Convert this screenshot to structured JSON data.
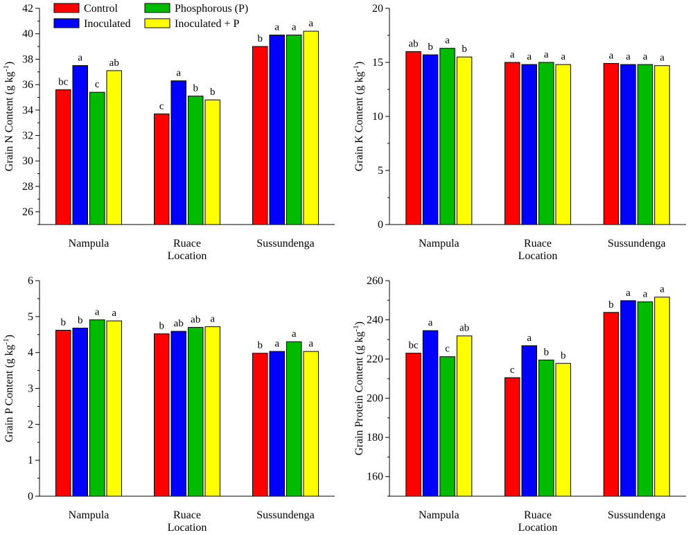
{
  "legend": [
    {
      "name": "Control",
      "color": "#ff0000"
    },
    {
      "name": "Inoculated",
      "color": "#0000ff"
    },
    {
      "name": "Phosphorous (P)",
      "color": "#00bb00"
    },
    {
      "name": "Inoculated + P",
      "color": "#ffff00"
    }
  ],
  "chart_data": [
    {
      "type": "bar",
      "ylabel": "Grain N Content (g kg",
      "ylabel_sup": "-1",
      "ylabel_close": ")",
      "xlabel": "Location",
      "ylim": [
        25,
        42
      ],
      "yticks": [
        26,
        28,
        30,
        32,
        34,
        36,
        38,
        40,
        42
      ],
      "ytick_labels": [
        "26",
        "28",
        "30",
        "32",
        "34",
        "36",
        "38",
        "40",
        "42"
      ],
      "categories": [
        "Nampula",
        "Ruace",
        "Sussundenga"
      ],
      "series": [
        {
          "name": "Control",
          "values": [
            35.6,
            33.7,
            39.0
          ],
          "letters": [
            "bc",
            "c",
            "b"
          ]
        },
        {
          "name": "Inoculated",
          "values": [
            37.5,
            36.3,
            39.9
          ],
          "letters": [
            "a",
            "a",
            "a"
          ]
        },
        {
          "name": "Phosphorous (P)",
          "values": [
            35.4,
            35.1,
            39.9
          ],
          "letters": [
            "c",
            "b",
            "a"
          ]
        },
        {
          "name": "Inoculated + P",
          "values": [
            37.1,
            34.8,
            40.2
          ],
          "letters": [
            "ab",
            "b",
            "a"
          ]
        }
      ]
    },
    {
      "type": "bar",
      "ylabel": "Grain K Content (g kg",
      "ylabel_sup": "-1",
      "ylabel_close": ")",
      "xlabel": "Location",
      "ylim": [
        0,
        20
      ],
      "yticks": [
        0,
        5,
        10,
        15,
        20
      ],
      "ytick_labels": [
        "0",
        "5",
        "10",
        "15",
        "20"
      ],
      "categories": [
        "Nampula",
        "Ruace",
        "Sussundenga"
      ],
      "series": [
        {
          "name": "Control",
          "values": [
            16.0,
            15.0,
            14.9
          ],
          "letters": [
            "ab",
            "a",
            "a"
          ]
        },
        {
          "name": "Inoculated",
          "values": [
            15.7,
            14.8,
            14.8
          ],
          "letters": [
            "b",
            "a",
            "a"
          ]
        },
        {
          "name": "Phosphorous (P)",
          "values": [
            16.3,
            15.0,
            14.8
          ],
          "letters": [
            "a",
            "a",
            "a"
          ]
        },
        {
          "name": "Inoculated + P",
          "values": [
            15.5,
            14.8,
            14.7
          ],
          "letters": [
            "b",
            "a",
            "a"
          ]
        }
      ]
    },
    {
      "type": "bar",
      "ylabel": "Grain P Content (g kg",
      "ylabel_sup": "-1",
      "ylabel_close": ")",
      "xlabel": "Location",
      "ylim": [
        0,
        6
      ],
      "yticks": [
        0,
        1,
        2,
        3,
        4,
        5,
        6
      ],
      "ytick_labels": [
        "0",
        "1",
        "2",
        "3",
        "4",
        "5",
        "6"
      ],
      "categories": [
        "Nampula",
        "Ruace",
        "Sussundenga"
      ],
      "series": [
        {
          "name": "Control",
          "values": [
            4.62,
            4.52,
            3.98
          ],
          "letters": [
            "b",
            "b",
            "b"
          ]
        },
        {
          "name": "Inoculated",
          "values": [
            4.68,
            4.59,
            4.03
          ],
          "letters": [
            "b",
            "ab",
            "a"
          ]
        },
        {
          "name": "Phosphorous (P)",
          "values": [
            4.91,
            4.7,
            4.3
          ],
          "letters": [
            "a",
            "ab",
            "a"
          ]
        },
        {
          "name": "Inoculated + P",
          "values": [
            4.88,
            4.72,
            4.03
          ],
          "letters": [
            "a",
            "a",
            "a"
          ]
        }
      ]
    },
    {
      "type": "bar",
      "ylabel": "Grain Protein Content (g kg",
      "ylabel_sup": "-1",
      "ylabel_close": ")",
      "xlabel": "Location",
      "ylim": [
        150,
        260
      ],
      "yticks": [
        160,
        180,
        200,
        220,
        240,
        260
      ],
      "ytick_labels": [
        "160",
        "180",
        "200",
        "220",
        "240",
        "260"
      ],
      "categories": [
        "Nampula",
        "Ruace",
        "Sussundenga"
      ],
      "series": [
        {
          "name": "Control",
          "values": [
            223,
            210.5,
            243.8
          ],
          "letters": [
            "bc",
            "c",
            "b"
          ]
        },
        {
          "name": "Inoculated",
          "values": [
            234.5,
            226.8,
            249.8
          ],
          "letters": [
            "a",
            "a",
            "a"
          ]
        },
        {
          "name": "Phosphorous (P)",
          "values": [
            221.2,
            219.5,
            249.2
          ],
          "letters": [
            "c",
            "b",
            "a"
          ]
        },
        {
          "name": "Inoculated + P",
          "values": [
            231.8,
            217.8,
            251.6
          ],
          "letters": [
            "ab",
            "b",
            "a"
          ]
        }
      ]
    }
  ]
}
